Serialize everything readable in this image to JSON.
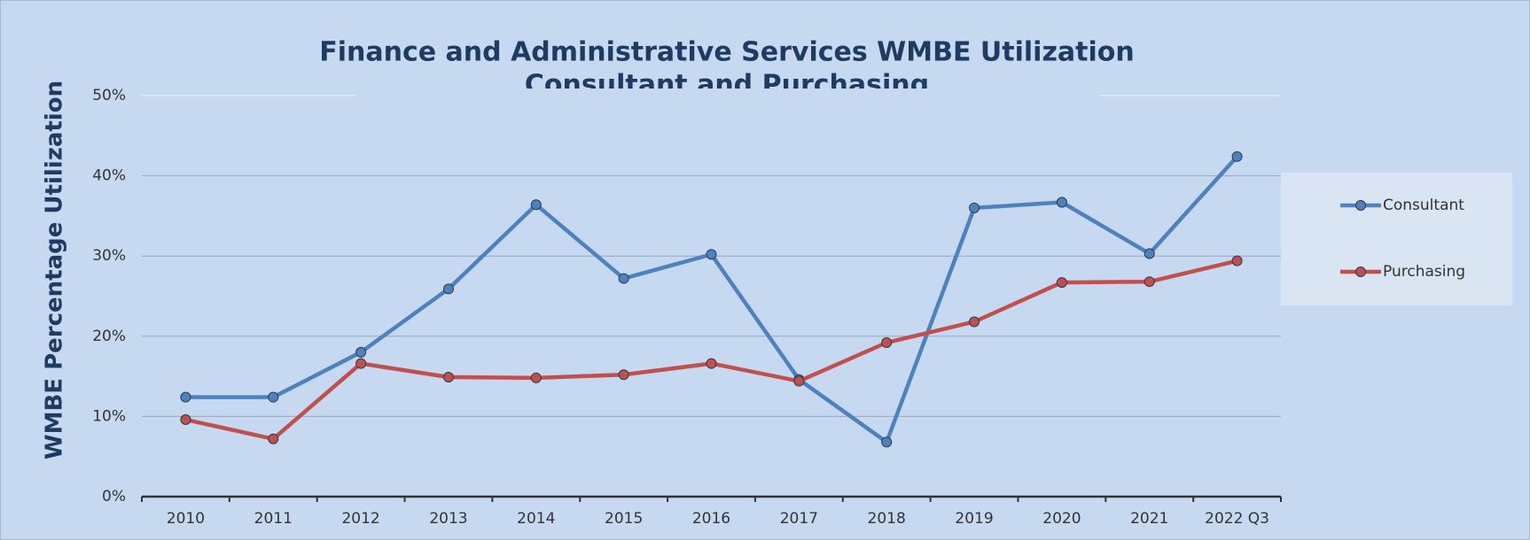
{
  "chart_data": {
    "type": "line",
    "title": [
      "Finance and Administrative Services WMBE Utilization",
      "Consultant and Purchasing"
    ],
    "y_label": "WMBE Percentage Utilization",
    "categories": [
      "2010",
      "2011",
      "2012",
      "2013",
      "2014",
      "2015",
      "2016",
      "2017",
      "2018",
      "2019",
      "2020",
      "2021",
      "2022 Q3"
    ],
    "series": [
      {
        "name": "Consultant",
        "color": "#4f81bd",
        "values": [
          12.4,
          12.4,
          18.0,
          25.9,
          36.4,
          27.2,
          30.2,
          14.6,
          6.8,
          36.0,
          36.7,
          30.3,
          42.4
        ]
      },
      {
        "name": "Purchasing",
        "color": "#c0504d",
        "values": [
          9.6,
          7.2,
          16.6,
          14.9,
          14.8,
          15.2,
          16.6,
          14.4,
          19.2,
          21.8,
          26.7,
          26.8,
          29.4
        ]
      }
    ],
    "ylim": [
      0,
      50
    ],
    "yticks": [
      {
        "value": 0,
        "label": "0%"
      },
      {
        "value": 10,
        "label": "10%"
      },
      {
        "value": 20,
        "label": "20%"
      },
      {
        "value": 30,
        "label": "30%"
      },
      {
        "value": 40,
        "label": "40%"
      },
      {
        "value": 50,
        "label": "50%"
      }
    ],
    "grid": true,
    "legend": "right"
  }
}
